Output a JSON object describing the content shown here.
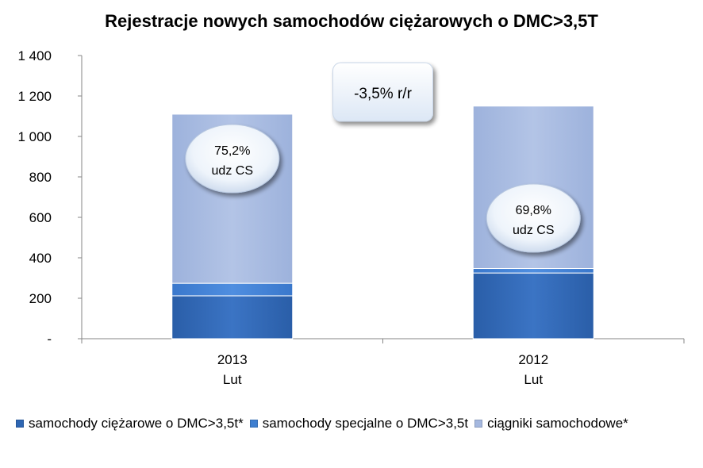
{
  "chart_data": {
    "type": "bar",
    "stacked": true,
    "title": "Rejestracje nowych samochodów ciężarowych o DMC>3,5T",
    "categories": [
      {
        "year": "2013",
        "month": "Lut"
      },
      {
        "year": "2012",
        "month": "Lut"
      }
    ],
    "series": [
      {
        "name": "samochody ciężarowe o DMC>3,5t*",
        "color": "#2e66b3",
        "values": [
          212,
          325
        ]
      },
      {
        "name": "samochody specjalne o DMC>3,5t",
        "color": "#3f7fd0",
        "values": [
          62,
          22
        ]
      },
      {
        "name": "ciągniki samochodowe*",
        "color": "#a5b8df",
        "values": [
          836,
          803
        ]
      }
    ],
    "ylim": [
      0,
      1400
    ],
    "yticks": [
      {
        "value": 0,
        "label": "-"
      },
      {
        "value": 200,
        "label": "200"
      },
      {
        "value": 400,
        "label": "400"
      },
      {
        "value": 600,
        "label": "600"
      },
      {
        "value": 800,
        "label": "800"
      },
      {
        "value": 1000,
        "label": "1 000"
      },
      {
        "value": 1200,
        "label": "1 200"
      },
      {
        "value": 1400,
        "label": "1 400"
      }
    ],
    "grid": false,
    "legend_position": "bottom",
    "annotations": {
      "change": "-3,5% r/r",
      "bubbles": [
        {
          "category": "2013",
          "line1": "75,2%",
          "line2": "udz CS"
        },
        {
          "category": "2012",
          "line1": "69,8%",
          "line2": "udz CS"
        }
      ]
    }
  }
}
